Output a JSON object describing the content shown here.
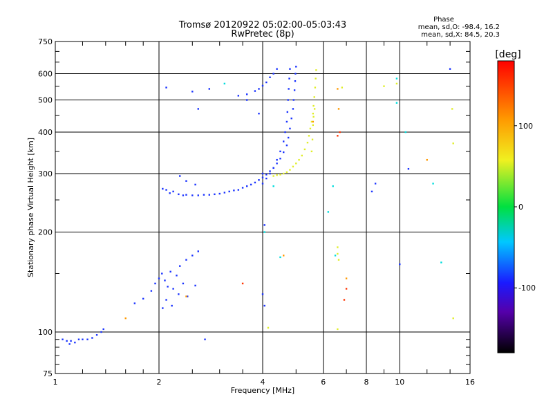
{
  "header": {
    "title_line1": "Tromsø 20120922 05:02:00-05:03:43",
    "title_line2": "RwPretec (8p)",
    "phase_heading": "Phase",
    "phase_o": "mean, sd,O: -98.4, 16.2",
    "phase_x": "mean, sd,X:  84.5, 20.3"
  },
  "colorbar": {
    "unit": "[deg]",
    "range": [
      -180,
      180
    ],
    "ticks": [
      "100",
      "0",
      "-100"
    ]
  },
  "colors": {
    "o_trace": "#1a33ff",
    "x_trace": "#e0ee2a",
    "grid": "#000000"
  },
  "chart_data": {
    "type": "scatter",
    "title": "Tromsø 20120922 05:02:00-05:03:43",
    "subtitle": "RwPretec (8p)",
    "xlabel": "Frequency [MHz]",
    "ylabel": "Stationary phase Virtual Height [km]",
    "x_scale": "log",
    "y_scale": "log",
    "xlim": [
      1,
      16
    ],
    "ylim": [
      75,
      750
    ],
    "x_ticks": [
      1,
      2,
      4,
      6,
      8,
      10,
      16
    ],
    "x_tick_labels": [
      "1",
      "2",
      "4",
      "6",
      "8",
      "10",
      "16"
    ],
    "y_ticks": [
      75,
      100,
      200,
      300,
      400,
      500,
      600,
      750
    ],
    "y_tick_labels": [
      "75",
      "100",
      "200",
      "300",
      "400",
      "500",
      "600",
      "750"
    ],
    "grid": true,
    "series": [
      {
        "color": "#1a33ff",
        "points": [
          [
            1.05,
            95
          ],
          [
            1.08,
            94
          ],
          [
            1.11,
            94
          ],
          [
            1.14,
            93
          ],
          [
            1.17,
            95
          ],
          [
            1.2,
            95
          ],
          [
            1.24,
            95
          ],
          [
            1.28,
            96
          ],
          [
            1.32,
            98
          ],
          [
            1.36,
            100
          ],
          [
            1.38,
            102
          ],
          [
            1.7,
            122
          ],
          [
            1.8,
            126
          ],
          [
            1.9,
            133
          ],
          [
            1.95,
            140
          ],
          [
            2.0,
            145
          ],
          [
            2.04,
            150
          ],
          [
            2.08,
            143
          ],
          [
            2.12,
            137
          ],
          [
            2.16,
            152
          ],
          [
            2.2,
            135
          ],
          [
            2.25,
            148
          ],
          [
            2.3,
            158
          ],
          [
            2.4,
            165
          ],
          [
            2.5,
            170
          ],
          [
            2.1,
            125
          ],
          [
            2.18,
            120
          ],
          [
            2.05,
            118
          ],
          [
            2.28,
            130
          ],
          [
            2.35,
            140
          ],
          [
            2.42,
            128
          ],
          [
            2.55,
            138
          ],
          [
            2.6,
            175
          ],
          [
            2.05,
            270
          ],
          [
            2.1,
            268
          ],
          [
            2.15,
            262
          ],
          [
            2.2,
            265
          ],
          [
            2.28,
            260
          ],
          [
            2.35,
            258
          ],
          [
            2.4,
            259
          ],
          [
            2.5,
            258
          ],
          [
            2.6,
            258
          ],
          [
            2.7,
            259
          ],
          [
            2.8,
            259
          ],
          [
            2.9,
            260
          ],
          [
            3.0,
            261
          ],
          [
            3.1,
            263
          ],
          [
            3.2,
            265
          ],
          [
            3.3,
            267
          ],
          [
            3.4,
            268
          ],
          [
            3.5,
            272
          ],
          [
            3.6,
            275
          ],
          [
            3.7,
            278
          ],
          [
            3.8,
            282
          ],
          [
            3.9,
            287
          ],
          [
            4.0,
            292
          ],
          [
            4.1,
            298
          ],
          [
            4.2,
            305
          ],
          [
            4.3,
            312
          ],
          [
            4.4,
            322
          ],
          [
            4.5,
            333
          ],
          [
            4.6,
            348
          ],
          [
            4.7,
            365
          ],
          [
            4.75,
            385
          ],
          [
            4.8,
            410
          ],
          [
            4.85,
            440
          ],
          [
            4.9,
            470
          ],
          [
            4.92,
            500
          ],
          [
            4.95,
            535
          ],
          [
            4.97,
            570
          ],
          [
            4.98,
            600
          ],
          [
            5.0,
            630
          ],
          [
            2.3,
            295
          ],
          [
            2.4,
            285
          ],
          [
            2.55,
            278
          ],
          [
            3.4,
            515
          ],
          [
            3.6,
            520
          ],
          [
            3.8,
            532
          ],
          [
            3.9,
            540
          ],
          [
            4.0,
            552
          ],
          [
            4.1,
            565
          ],
          [
            4.2,
            585
          ],
          [
            4.3,
            600
          ],
          [
            4.4,
            620
          ],
          [
            4.0,
            280
          ],
          [
            4.1,
            290
          ],
          [
            4.2,
            300
          ],
          [
            4.3,
            312
          ],
          [
            4.4,
            330
          ],
          [
            4.5,
            350
          ],
          [
            4.6,
            375
          ],
          [
            4.65,
            400
          ],
          [
            4.7,
            430
          ],
          [
            4.72,
            460
          ],
          [
            4.74,
            500
          ],
          [
            4.76,
            540
          ],
          [
            4.78,
            580
          ],
          [
            4.8,
            620
          ],
          [
            2.1,
            545
          ],
          [
            2.5,
            530
          ],
          [
            2.8,
            540
          ],
          [
            2.6,
            470
          ],
          [
            3.6,
            500
          ],
          [
            1.1,
            92
          ],
          [
            3.9,
            455
          ],
          [
            4.0,
            300
          ],
          [
            4.05,
            210
          ],
          [
            4.0,
            130
          ],
          [
            4.05,
            120
          ],
          [
            2.72,
            95
          ],
          [
            10.0,
            160
          ],
          [
            10.6,
            310
          ],
          [
            8.3,
            265
          ],
          [
            8.5,
            280
          ],
          [
            14.0,
            620
          ]
        ]
      },
      {
        "color": "#e0ee2a",
        "points": [
          [
            4.3,
            295
          ],
          [
            4.4,
            297
          ],
          [
            4.5,
            298
          ],
          [
            4.6,
            300
          ],
          [
            4.7,
            303
          ],
          [
            4.8,
            308
          ],
          [
            4.9,
            315
          ],
          [
            5.0,
            322
          ],
          [
            5.1,
            330
          ],
          [
            5.2,
            340
          ],
          [
            5.3,
            355
          ],
          [
            5.4,
            372
          ],
          [
            5.45,
            390
          ],
          [
            5.5,
            410
          ],
          [
            5.55,
            430
          ],
          [
            5.6,
            455
          ],
          [
            5.62,
            480
          ],
          [
            5.65,
            510
          ],
          [
            5.68,
            545
          ],
          [
            5.7,
            580
          ],
          [
            5.72,
            615
          ],
          [
            5.55,
            350
          ],
          [
            5.58,
            380
          ],
          [
            5.6,
            420
          ],
          [
            5.62,
            445
          ],
          [
            5.66,
            470
          ],
          [
            9.0,
            550
          ],
          [
            9.8,
            560
          ],
          [
            14.2,
            470
          ],
          [
            14.3,
            370
          ],
          [
            6.6,
            180
          ],
          [
            6.6,
            172
          ],
          [
            6.65,
            165
          ],
          [
            6.6,
            102
          ],
          [
            6.8,
            545
          ],
          [
            14.3,
            110
          ],
          [
            4.15,
            103
          ]
        ]
      },
      {
        "color": "#ff3300",
        "points": [
          [
            3.5,
            140
          ],
          [
            6.9,
            125
          ],
          [
            6.6,
            390
          ],
          [
            6.7,
            400
          ],
          [
            7.0,
            135
          ]
        ]
      },
      {
        "color": "#00dddd",
        "points": [
          [
            3.1,
            560
          ],
          [
            4.3,
            275
          ],
          [
            4.5,
            168
          ],
          [
            4.05,
            200
          ],
          [
            6.5,
            170
          ],
          [
            6.2,
            230
          ],
          [
            6.4,
            275
          ],
          [
            9.8,
            490
          ],
          [
            12.5,
            280
          ],
          [
            13.2,
            162
          ],
          [
            10.4,
            400
          ],
          [
            9.8,
            580
          ]
        ]
      },
      {
        "color": "#ff9900",
        "points": [
          [
            1.6,
            110
          ],
          [
            2.4,
            128
          ],
          [
            5.6,
            430
          ],
          [
            6.6,
            540
          ],
          [
            7.0,
            145
          ],
          [
            12.0,
            330
          ],
          [
            6.65,
            470
          ],
          [
            4.6,
            170
          ]
        ]
      }
    ]
  }
}
